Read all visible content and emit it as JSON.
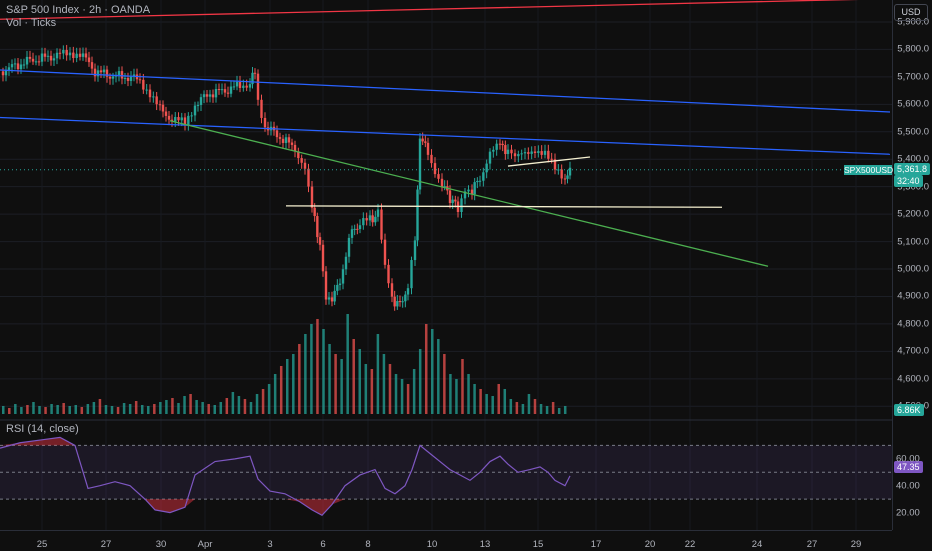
{
  "header": {
    "title": "S&P 500 Index · 2h · OANDA",
    "volume_label": "Vol · Ticks",
    "rsi_label": "RSI (14, close)"
  },
  "price_scale": {
    "currency": "USD",
    "ticks": [
      "5,900.0",
      "5,800.0",
      "5,700.0",
      "5,600.0",
      "5,500.0",
      "5,400.0",
      "5,300.0",
      "5,200.0",
      "5,100.0",
      "5,000.0",
      "4,900.0",
      "4,800.0",
      "4,700.0",
      "4,600.0",
      "4,500.0"
    ],
    "symbol_tag": "SPX500USD",
    "last_price": "5,361.8",
    "countdown": "32:40",
    "volume_value": "6.86K"
  },
  "rsi_scale": {
    "ticks": [
      "60.00",
      "40.00",
      "20.00"
    ],
    "value": "47.35"
  },
  "time_scale": {
    "ticks": [
      "25",
      "27",
      "30",
      "Apr",
      "3",
      "6",
      "8",
      "10",
      "13",
      "15",
      "17",
      "20",
      "22",
      "24",
      "27",
      "29"
    ]
  },
  "colors": {
    "up": "#26a69a",
    "down": "#ef5350",
    "red_line": "#f23645",
    "blue_line": "#2962ff",
    "green_line": "#4caf50",
    "white_line": "#f5f0d0",
    "rsi_line": "#7e57c2"
  },
  "chart_data": {
    "type": "candlestick",
    "symbol": "S&P 500 Index",
    "interval": "2h",
    "source": "OANDA",
    "yrange": [
      4450,
      5980
    ],
    "last_price": 5361.8,
    "close_path": [
      [
        0,
        5720
      ],
      [
        15,
        5740
      ],
      [
        30,
        5760
      ],
      [
        45,
        5770
      ],
      [
        60,
        5780
      ],
      [
        80,
        5790
      ],
      [
        95,
        5720
      ],
      [
        110,
        5705
      ],
      [
        125,
        5700
      ],
      [
        140,
        5690
      ],
      [
        150,
        5640
      ],
      [
        160,
        5580
      ],
      [
        172,
        5545
      ],
      [
        185,
        5530
      ],
      [
        195,
        5600
      ],
      [
        210,
        5640
      ],
      [
        225,
        5650
      ],
      [
        240,
        5670
      ],
      [
        250,
        5680
      ],
      [
        255,
        5720
      ],
      [
        258,
        5620
      ],
      [
        265,
        5520
      ],
      [
        280,
        5480
      ],
      [
        295,
        5440
      ],
      [
        305,
        5370
      ],
      [
        312,
        5220
      ],
      [
        320,
        5090
      ],
      [
        326,
        4880
      ],
      [
        332,
        4900
      ],
      [
        340,
        4950
      ],
      [
        346,
        5060
      ],
      [
        352,
        5140
      ],
      [
        360,
        5160
      ],
      [
        370,
        5180
      ],
      [
        378,
        5200
      ],
      [
        385,
        5000
      ],
      [
        392,
        4890
      ],
      [
        400,
        4870
      ],
      [
        408,
        4930
      ],
      [
        415,
        5100
      ],
      [
        420,
        5480
      ],
      [
        428,
        5430
      ],
      [
        435,
        5360
      ],
      [
        442,
        5310
      ],
      [
        450,
        5260
      ],
      [
        458,
        5220
      ],
      [
        465,
        5300
      ],
      [
        472,
        5290
      ],
      [
        480,
        5330
      ],
      [
        490,
        5430
      ],
      [
        500,
        5450
      ],
      [
        508,
        5430
      ],
      [
        515,
        5400
      ],
      [
        525,
        5420
      ],
      [
        535,
        5440
      ],
      [
        545,
        5420
      ],
      [
        555,
        5360
      ],
      [
        565,
        5330
      ],
      [
        570,
        5362
      ]
    ],
    "volume_heights": [
      8,
      6,
      10,
      7,
      9,
      12,
      8,
      7,
      10,
      9,
      11,
      8,
      9,
      7,
      10,
      12,
      15,
      9,
      8,
      7,
      11,
      10,
      13,
      9,
      8,
      10,
      12,
      14,
      16,
      11,
      18,
      20,
      14,
      12,
      10,
      9,
      12,
      16,
      22,
      18,
      15,
      12,
      20,
      25,
      30,
      40,
      48,
      55,
      60,
      70,
      80,
      90,
      95,
      85,
      70,
      60,
      55,
      100,
      75,
      65,
      50,
      45,
      80,
      60,
      50,
      40,
      35,
      30,
      45,
      65,
      90,
      85,
      75,
      60,
      40,
      35,
      55,
      40,
      30,
      25,
      20,
      18,
      30,
      25,
      15,
      12,
      10,
      20,
      15,
      10,
      8,
      12,
      6,
      8
    ],
    "rsi_series": [
      [
        0,
        68
      ],
      [
        20,
        72
      ],
      [
        40,
        74
      ],
      [
        60,
        76
      ],
      [
        75,
        70
      ],
      [
        88,
        38
      ],
      [
        100,
        40
      ],
      [
        115,
        43
      ],
      [
        130,
        40
      ],
      [
        145,
        30
      ],
      [
        155,
        22
      ],
      [
        170,
        20
      ],
      [
        185,
        24
      ],
      [
        195,
        48
      ],
      [
        215,
        58
      ],
      [
        235,
        60
      ],
      [
        250,
        62
      ],
      [
        258,
        45
      ],
      [
        270,
        36
      ],
      [
        285,
        34
      ],
      [
        300,
        28
      ],
      [
        312,
        22
      ],
      [
        322,
        18
      ],
      [
        332,
        26
      ],
      [
        345,
        40
      ],
      [
        360,
        48
      ],
      [
        375,
        52
      ],
      [
        385,
        38
      ],
      [
        395,
        34
      ],
      [
        405,
        40
      ],
      [
        412,
        52
      ],
      [
        420,
        70
      ],
      [
        430,
        64
      ],
      [
        440,
        58
      ],
      [
        450,
        52
      ],
      [
        460,
        48
      ],
      [
        470,
        44
      ],
      [
        480,
        50
      ],
      [
        490,
        58
      ],
      [
        500,
        62
      ],
      [
        508,
        56
      ],
      [
        518,
        50
      ],
      [
        530,
        52
      ],
      [
        540,
        54
      ],
      [
        548,
        50
      ],
      [
        555,
        44
      ],
      [
        565,
        40
      ],
      [
        570,
        47.35
      ]
    ],
    "rsi_levels": {
      "upper": 70,
      "middle": 50,
      "lower": 30
    },
    "trendlines": [
      {
        "name": "red-upper",
        "from": [
          0,
          5910
        ],
        "to": [
          890,
          5985
        ],
        "color": "#f23645"
      },
      {
        "name": "blue-top",
        "from": [
          0,
          5725
        ],
        "to": [
          890,
          5572
        ],
        "color": "#2962ff"
      },
      {
        "name": "blue-mid",
        "from": [
          0,
          5552
        ],
        "to": [
          890,
          5418
        ],
        "color": "#2962ff"
      },
      {
        "name": "green-down",
        "from": [
          170,
          5540
        ],
        "to": [
          768,
          5010
        ],
        "color": "#4caf50"
      },
      {
        "name": "white-support",
        "from": [
          286,
          5230
        ],
        "to": [
          722,
          5225
        ],
        "color": "#f5f0d0"
      },
      {
        "name": "white-resistance",
        "from": [
          508,
          5375
        ],
        "to": [
          590,
          5408
        ],
        "color": "#f5f0d0"
      }
    ]
  }
}
